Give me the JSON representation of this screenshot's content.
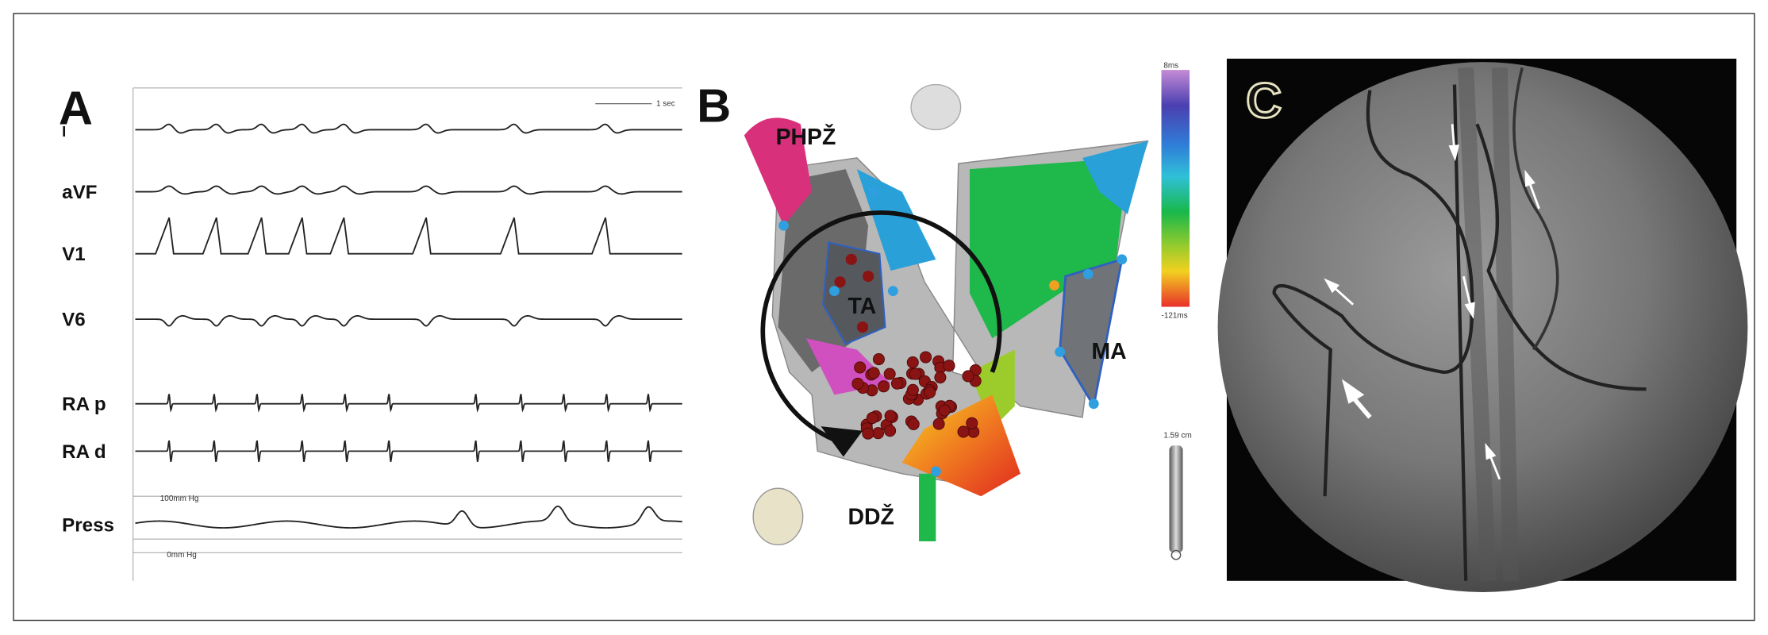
{
  "panel_a": {
    "label": "A",
    "scale": "1 sec",
    "traces": [
      "I",
      "aVF",
      "V1",
      "V6",
      "RA p",
      "RA d",
      "Press"
    ],
    "pressure_high": "100mm Hg",
    "pressure_low": "0mm Hg"
  },
  "panel_b": {
    "label": "B",
    "annotations": {
      "rvot": "PHPŽ",
      "ta": "TA",
      "ma": "MA",
      "ivc": "DDŽ"
    },
    "colorbar_top": "8ms",
    "colorbar_bottom": "-121ms",
    "scale": "1.59 cm"
  },
  "panel_c": {
    "label": "C"
  }
}
